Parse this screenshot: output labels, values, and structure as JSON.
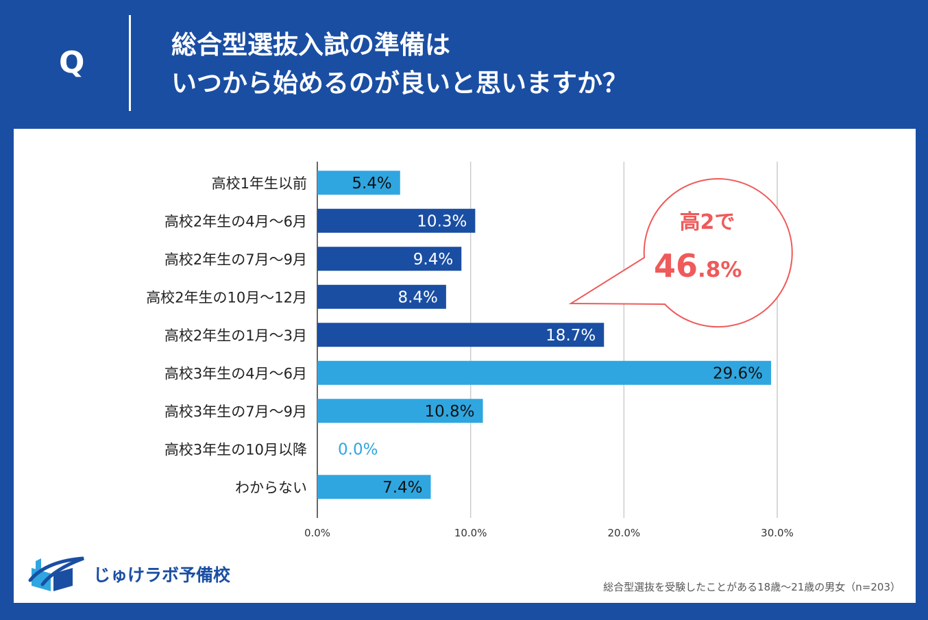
{
  "header": {
    "q_mark": "Q",
    "title_line1": "総合型選抜入試の準備は",
    "title_line2": "いつから始めるのが良いと思いますか？"
  },
  "chart_data": {
    "type": "bar",
    "orientation": "horizontal",
    "categories": [
      "高校1年生以前",
      "高校2年生の4月～6月",
      "高校2年生の7月～9月",
      "高校2年生の10月～12月",
      "高校2年生の1月～3月",
      "高校3年生の4月～6月",
      "高校3年生の7月～9月",
      "高校3年生の10月以降",
      "わからない"
    ],
    "values": [
      5.4,
      10.3,
      9.4,
      8.4,
      18.7,
      29.6,
      10.8,
      0.0,
      7.4
    ],
    "value_labels": [
      "5.4%",
      "10.3%",
      "9.4%",
      "8.4%",
      "18.7%",
      "29.6%",
      "10.8%",
      "0.0%",
      "7.4%"
    ],
    "bar_colors": [
      "#2fa6e0",
      "#1a4ea3",
      "#1a4ea3",
      "#1a4ea3",
      "#1a4ea3",
      "#2fa6e0",
      "#2fa6e0",
      "#2fa6e0",
      "#2fa6e0"
    ],
    "label_colors": [
      "#111111",
      "#ffffff",
      "#ffffff",
      "#ffffff",
      "#ffffff",
      "#111111",
      "#111111",
      "#2fa6e0",
      "#111111"
    ],
    "xlim": [
      0,
      30
    ],
    "xticks": [
      0,
      10,
      20,
      30
    ],
    "xtick_labels": [
      "0.0%",
      "10.0%",
      "20.0%",
      "30.0%"
    ],
    "grid": "vertical",
    "annotation": {
      "line1": "高2で",
      "big": "46",
      "small": ".8%",
      "color": "#ef5a5a"
    }
  },
  "logo": {
    "text": "じゅけラボ予備校"
  },
  "source": "総合型選抜を受験したことがある18歳～21歳の男女（n=203）",
  "colors": {
    "navy": "#1a4ea3",
    "light_blue": "#2fa6e0",
    "accent": "#ef5a5a"
  }
}
